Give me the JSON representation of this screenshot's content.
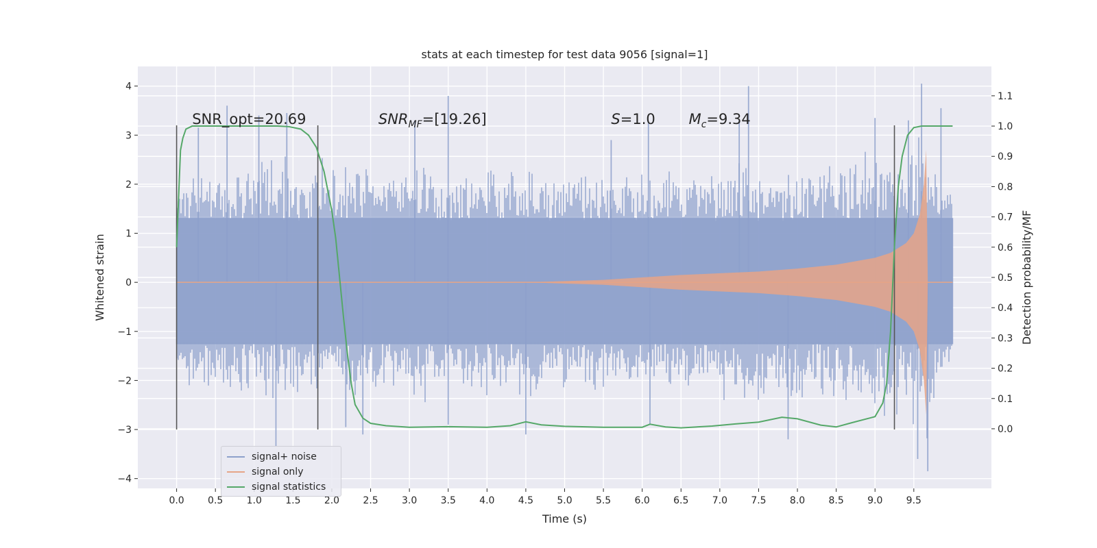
{
  "chart_data": {
    "type": "line",
    "title": "stats at each timestep for test data 9056 [signal=1]",
    "xlabel": "Time (s)",
    "ylabel": "Whitened strain",
    "y2label": "Detection probability/MF",
    "xlim": [
      -0.5,
      10.5
    ],
    "ylim": [
      -4.2,
      4.4
    ],
    "y2lim": [
      -0.197,
      1.197
    ],
    "xticks": [
      0.0,
      0.5,
      1.0,
      1.5,
      2.0,
      2.5,
      3.0,
      3.5,
      4.0,
      4.5,
      5.0,
      5.5,
      6.0,
      6.5,
      7.0,
      7.5,
      8.0,
      8.5,
      9.0,
      9.5
    ],
    "xtick_labels": [
      "0.0",
      "0.5",
      "1.0",
      "1.5",
      "2.0",
      "2.5",
      "3.0",
      "3.5",
      "4.0",
      "4.5",
      "5.0",
      "5.5",
      "6.0",
      "6.5",
      "7.0",
      "7.5",
      "8.0",
      "8.5",
      "9.0",
      "9.5"
    ],
    "yticks": [
      -4,
      -3,
      -2,
      -1,
      0,
      1,
      2,
      3,
      4
    ],
    "ytick_labels": [
      "−4",
      "−3",
      "−2",
      "−1",
      "0",
      "1",
      "2",
      "3",
      "4"
    ],
    "y2ticks": [
      0.0,
      0.1,
      0.2,
      0.3,
      0.4,
      0.5,
      0.6,
      0.7,
      0.8,
      0.9,
      1.0,
      1.1
    ],
    "y2tick_labels": [
      "0.0",
      "0.1",
      "0.2",
      "0.3",
      "0.4",
      "0.5",
      "0.6",
      "0.7",
      "0.8",
      "0.9",
      "1.0",
      "1.1"
    ],
    "grid": true,
    "legend_position": "bottom-left",
    "annotations": [
      {
        "text": "SNR_opt=20.69",
        "x": 0.2,
        "y": 3.2
      },
      {
        "text": "SNR",
        "sub": "MF",
        "suffix": "=[19.26]",
        "x": 2.6,
        "y": 3.2
      },
      {
        "text": "S",
        "suffix": "=1.0",
        "x": 5.6,
        "y": 3.2
      },
      {
        "text": "M",
        "sub": "c",
        "suffix": "=9.34",
        "x": 6.6,
        "y": 3.2
      }
    ],
    "vlines": [
      {
        "x": 0.0,
        "y0": -3.0,
        "y1": 3.2
      },
      {
        "x": 1.82,
        "y0": -3.0,
        "y1": 3.2
      },
      {
        "x": 9.25,
        "y0": -3.0,
        "y1": 3.2
      }
    ],
    "series": [
      {
        "name": "signal+ noise",
        "color": "#8da0cb",
        "axis": "left",
        "x_range": [
          0.0,
          10.0
        ],
        "envelope_x": [
          0.0,
          1.0,
          2.0,
          3.0,
          4.0,
          5.0,
          6.0,
          7.0,
          8.0,
          8.5,
          9.0,
          9.3,
          9.5,
          9.6,
          9.65,
          9.7,
          10.0
        ],
        "envelope_upper": [
          2.2,
          2.6,
          2.6,
          2.5,
          2.5,
          2.4,
          2.4,
          2.5,
          2.6,
          2.6,
          2.8,
          3.0,
          3.3,
          3.6,
          3.2,
          2.6,
          2.4
        ],
        "envelope_lower": [
          -2.2,
          -2.5,
          -2.4,
          -2.5,
          -2.5,
          -2.4,
          -2.4,
          -2.5,
          -2.6,
          -2.6,
          -2.7,
          -3.0,
          -3.2,
          -3.6,
          -3.8,
          -3.0,
          -2.0
        ],
        "peaks": [
          {
            "x": 0.28,
            "y": 3.15
          },
          {
            "x": 0.65,
            "y": 3.6
          },
          {
            "x": 1.06,
            "y": 3.4
          },
          {
            "x": 1.42,
            "y": 3.45
          },
          {
            "x": 1.28,
            "y": -3.35
          },
          {
            "x": 2.18,
            "y": -2.95
          },
          {
            "x": 2.4,
            "y": -3.1
          },
          {
            "x": 3.07,
            "y": 3.3
          },
          {
            "x": 3.5,
            "y": 3.8
          },
          {
            "x": 3.5,
            "y": -2.9
          },
          {
            "x": 4.5,
            "y": -3.1
          },
          {
            "x": 5.6,
            "y": 2.9
          },
          {
            "x": 6.08,
            "y": 3.25
          },
          {
            "x": 6.1,
            "y": -2.9
          },
          {
            "x": 7.37,
            "y": 4.0
          },
          {
            "x": 7.25,
            "y": 3.3
          },
          {
            "x": 7.88,
            "y": -3.2
          },
          {
            "x": 9.0,
            "y": 3.35
          },
          {
            "x": 9.43,
            "y": 3.3
          },
          {
            "x": 9.6,
            "y": 4.05
          },
          {
            "x": 9.68,
            "y": -3.85
          },
          {
            "x": 9.85,
            "y": 3.55
          },
          {
            "x": 9.55,
            "y": -3.6
          }
        ]
      },
      {
        "name": "signal only",
        "color": "#e6a587",
        "axis": "left",
        "envelope_x": [
          0.0,
          4.5,
          5.5,
          6.5,
          7.5,
          8.0,
          8.5,
          9.0,
          9.2,
          9.4,
          9.5,
          9.58,
          9.63,
          9.66,
          9.68,
          10.0
        ],
        "envelope_amplitude": [
          0.0,
          0.0,
          0.05,
          0.15,
          0.22,
          0.28,
          0.36,
          0.5,
          0.6,
          0.8,
          1.0,
          1.4,
          2.0,
          2.7,
          0.0,
          0.0
        ]
      },
      {
        "name": "signal statistics",
        "color": "#55a868",
        "axis": "right",
        "x": [
          0.0,
          0.05,
          0.08,
          0.12,
          0.2,
          0.3,
          0.5,
          1.0,
          1.3,
          1.45,
          1.6,
          1.7,
          1.8,
          1.9,
          2.0,
          2.05,
          2.1,
          2.15,
          2.2,
          2.25,
          2.3,
          2.4,
          2.5,
          2.7,
          3.0,
          3.5,
          4.0,
          4.3,
          4.5,
          4.7,
          5.0,
          5.5,
          6.0,
          6.1,
          6.3,
          6.5,
          6.9,
          7.2,
          7.5,
          7.8,
          8.0,
          8.3,
          8.5,
          8.7,
          9.0,
          9.1,
          9.15,
          9.2,
          9.25,
          9.3,
          9.35,
          9.42,
          9.5,
          9.6,
          10.0
        ],
        "y": [
          0.6,
          0.92,
          0.96,
          0.99,
          1.0,
          1.0,
          1.0,
          1.0,
          1.0,
          0.998,
          0.99,
          0.97,
          0.93,
          0.85,
          0.72,
          0.63,
          0.5,
          0.37,
          0.25,
          0.15,
          0.08,
          0.035,
          0.018,
          0.01,
          0.005,
          0.007,
          0.005,
          0.01,
          0.023,
          0.013,
          0.008,
          0.005,
          0.005,
          0.015,
          0.006,
          0.003,
          0.009,
          0.016,
          0.022,
          0.038,
          0.033,
          0.012,
          0.006,
          0.02,
          0.04,
          0.085,
          0.15,
          0.32,
          0.6,
          0.8,
          0.9,
          0.97,
          0.995,
          1.0,
          1.0
        ]
      }
    ]
  }
}
